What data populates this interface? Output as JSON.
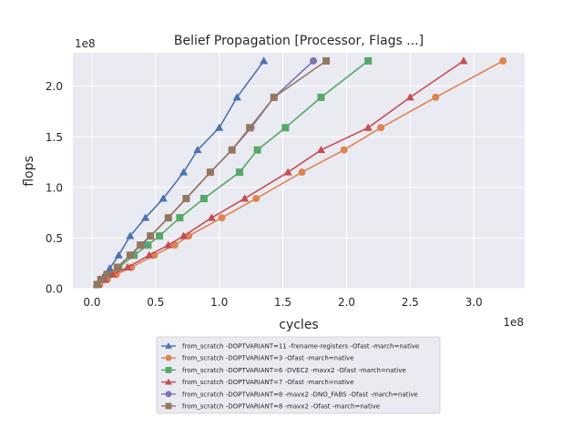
{
  "chart_data": {
    "type": "line",
    "title": "Belief Propagation [Processor, Flags ...]",
    "xlabel": "cycles",
    "ylabel": "flops",
    "x_scale_label": "1e8",
    "y_scale_label": "1e8",
    "xlim": [
      -0.15,
      3.4
    ],
    "ylim": [
      0,
      2.33
    ],
    "x_ticks": [
      0.0,
      0.5,
      1.0,
      1.5,
      2.0,
      2.5,
      3.0
    ],
    "x_tick_labels": [
      "0.0",
      "0.5",
      "1.0",
      "1.5",
      "2.0",
      "2.5",
      "3.0"
    ],
    "y_ticks": [
      0.0,
      0.5,
      1.0,
      1.5,
      2.0
    ],
    "y_tick_labels": [
      "0.0",
      "0.5",
      "1.0",
      "1.5",
      "2.0"
    ],
    "grid": true,
    "legend_position": "below",
    "series": [
      {
        "name": "from_scratch -DOPTVARIANT=11 -frename-registers -Ofast -march=native",
        "color": "#4c72b0",
        "marker": "triangle",
        "points": [
          [
            0.04,
            0.04
          ],
          [
            0.07,
            0.09
          ],
          [
            0.1,
            0.14
          ],
          [
            0.14,
            0.2
          ],
          [
            0.21,
            0.33
          ],
          [
            0.3,
            0.52
          ],
          [
            0.42,
            0.7
          ],
          [
            0.56,
            0.89
          ],
          [
            0.72,
            1.15
          ],
          [
            0.83,
            1.37
          ],
          [
            1.0,
            1.59
          ],
          [
            1.14,
            1.89
          ],
          [
            1.35,
            2.25
          ]
        ]
      },
      {
        "name": "from_scratch -DOPTVARIANT=3 -Ofast -march=native",
        "color": "#dd8452",
        "marker": "circle",
        "points": [
          [
            0.06,
            0.04
          ],
          [
            0.12,
            0.09
          ],
          [
            0.19,
            0.14
          ],
          [
            0.31,
            0.21
          ],
          [
            0.49,
            0.33
          ],
          [
            0.65,
            0.43
          ],
          [
            0.76,
            0.52
          ],
          [
            1.02,
            0.7
          ],
          [
            1.29,
            0.89
          ],
          [
            1.65,
            1.15
          ],
          [
            1.98,
            1.37
          ],
          [
            2.27,
            1.59
          ],
          [
            2.7,
            1.89
          ],
          [
            3.23,
            2.25
          ]
        ]
      },
      {
        "name": "from_scratch -DOPTVARIANT=6 -DVEC2 -mavx2 -Ofast -march=native",
        "color": "#55a868",
        "marker": "square",
        "points": [
          [
            0.04,
            0.04
          ],
          [
            0.08,
            0.09
          ],
          [
            0.13,
            0.14
          ],
          [
            0.21,
            0.21
          ],
          [
            0.33,
            0.33
          ],
          [
            0.44,
            0.43
          ],
          [
            0.53,
            0.52
          ],
          [
            0.69,
            0.7
          ],
          [
            0.88,
            0.89
          ],
          [
            1.16,
            1.15
          ],
          [
            1.3,
            1.37
          ],
          [
            1.52,
            1.59
          ],
          [
            1.8,
            1.89
          ],
          [
            2.17,
            2.25
          ]
        ]
      },
      {
        "name": "from_scratch -DOPTVARIANT=7 -Ofast -march=native",
        "color": "#c44e52",
        "marker": "triangle",
        "points": [
          [
            0.05,
            0.04
          ],
          [
            0.1,
            0.09
          ],
          [
            0.16,
            0.14
          ],
          [
            0.28,
            0.21
          ],
          [
            0.45,
            0.33
          ],
          [
            0.6,
            0.43
          ],
          [
            0.72,
            0.52
          ],
          [
            0.94,
            0.7
          ],
          [
            1.2,
            0.89
          ],
          [
            1.54,
            1.15
          ],
          [
            1.8,
            1.37
          ],
          [
            2.17,
            1.59
          ],
          [
            2.5,
            1.89
          ],
          [
            2.92,
            2.25
          ]
        ]
      },
      {
        "name": "from_scratch -DOPTVARIANT=8 -mavx2 -DNO_FABS -Ofast -march=native",
        "color": "#8172b3",
        "marker": "circle",
        "points": [
          [
            0.04,
            0.04
          ],
          [
            0.07,
            0.09
          ],
          [
            0.12,
            0.14
          ],
          [
            0.2,
            0.21
          ],
          [
            0.3,
            0.33
          ],
          [
            0.39,
            0.43
          ],
          [
            0.46,
            0.52
          ],
          [
            0.6,
            0.7
          ],
          [
            0.74,
            0.89
          ],
          [
            0.93,
            1.15
          ],
          [
            1.1,
            1.37
          ],
          [
            1.25,
            1.59
          ],
          [
            1.43,
            1.89
          ],
          [
            1.74,
            2.25
          ]
        ]
      },
      {
        "name": "from_scratch -DOPTVARIANT=8 -mavx2 -Ofast -march=native",
        "color": "#937860",
        "marker": "square",
        "points": [
          [
            0.04,
            0.04
          ],
          [
            0.07,
            0.09
          ],
          [
            0.12,
            0.14
          ],
          [
            0.2,
            0.21
          ],
          [
            0.3,
            0.33
          ],
          [
            0.38,
            0.43
          ],
          [
            0.46,
            0.52
          ],
          [
            0.6,
            0.7
          ],
          [
            0.74,
            0.89
          ],
          [
            0.93,
            1.15
          ],
          [
            1.1,
            1.37
          ],
          [
            1.24,
            1.59
          ],
          [
            1.43,
            1.89
          ],
          [
            1.84,
            2.25
          ]
        ]
      }
    ]
  }
}
